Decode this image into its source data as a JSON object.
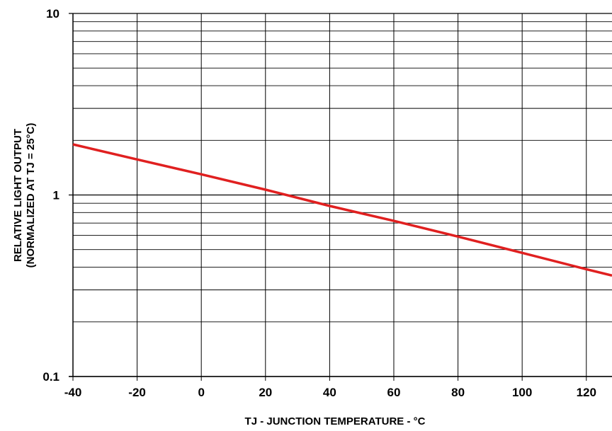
{
  "chart_data": {
    "type": "line",
    "xlabel": "TJ - JUNCTION TEMPERATURE - °C",
    "ylabel_lines": [
      "RELATIVE LIGHT OUTPUT",
      "(NORMALIZED AT TJ = 25°C)"
    ],
    "xlim": [
      -40,
      128
    ],
    "ylim": [
      0.1,
      10
    ],
    "yscale": "log",
    "grid": true,
    "x_ticks": [
      -40,
      -20,
      0,
      20,
      40,
      60,
      80,
      100,
      120
    ],
    "x_tick_labels": [
      "-40",
      "-20",
      "0",
      "20",
      "40",
      "60",
      "80",
      "100",
      "120"
    ],
    "y_ticks": [
      0.1,
      1,
      10
    ],
    "y_tick_labels": [
      "0.1",
      "1",
      "10"
    ],
    "series": [
      {
        "color": "#e02020",
        "x": [
          -40,
          -20,
          0,
          20,
          40,
          60,
          80,
          100,
          120,
          128
        ],
        "y": [
          1.9,
          1.57,
          1.3,
          1.07,
          0.87,
          0.72,
          0.59,
          0.48,
          0.39,
          0.36
        ]
      }
    ]
  }
}
